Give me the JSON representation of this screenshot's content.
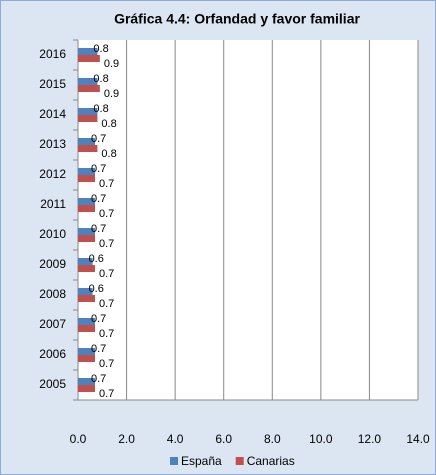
{
  "chart_data": {
    "type": "hbar",
    "title": "Gráfica 4.4: Orfandad y favor familiar",
    "categories": [
      "2016",
      "2015",
      "2014",
      "2013",
      "2012",
      "2011",
      "2010",
      "2009",
      "2008",
      "2007",
      "2006",
      "2005"
    ],
    "series": [
      {
        "name": "España",
        "color": "#4f81bd",
        "values": [
          0.8,
          0.8,
          0.8,
          0.7,
          0.7,
          0.7,
          0.7,
          0.6,
          0.6,
          0.7,
          0.7,
          0.7
        ]
      },
      {
        "name": "Canarias",
        "color": "#c0504d",
        "values": [
          0.9,
          0.9,
          0.8,
          0.8,
          0.7,
          0.7,
          0.7,
          0.7,
          0.7,
          0.7,
          0.7,
          0.7
        ]
      }
    ],
    "xlim": [
      0,
      14
    ],
    "xticks": [
      {
        "value": 0,
        "label": "0.0"
      },
      {
        "value": 2,
        "label": "2.0"
      },
      {
        "value": 4,
        "label": "4.0"
      },
      {
        "value": 6,
        "label": "6.0"
      },
      {
        "value": 8,
        "label": "8.0"
      },
      {
        "value": 10,
        "label": "10.0"
      },
      {
        "value": 12,
        "label": "12.0"
      },
      {
        "value": 14,
        "label": "14.0"
      }
    ],
    "grid": true,
    "legend": "bottom"
  }
}
